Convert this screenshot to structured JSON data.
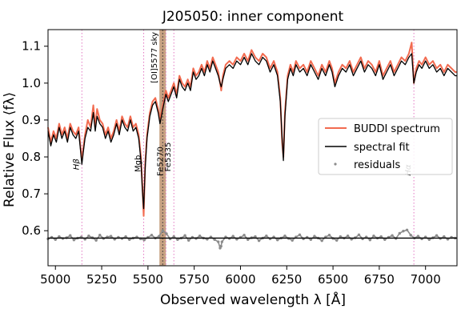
{
  "chart_data": {
    "type": "line",
    "title": "J205050: inner component",
    "xlabel": "Observed wavelength λ [Å]",
    "ylabel": "Relative Flux ⟨fλ⟩",
    "xlim": [
      4960,
      7170
    ],
    "ylim": [
      0.505,
      1.145
    ],
    "xticks": [
      5000,
      5250,
      5500,
      5750,
      6000,
      6250,
      6500,
      6750,
      7000
    ],
    "yticks": [
      0.6,
      0.7,
      0.8,
      0.9,
      1.0,
      1.1
    ],
    "xtick_labels": [
      "5000",
      "5250",
      "5500",
      "5750",
      "6000",
      "6250",
      "6500",
      "6750",
      "7000"
    ],
    "ytick_labels": [
      "0.6",
      "0.7",
      "0.8",
      "0.9",
      "1.0",
      "1.1"
    ],
    "grid": false,
    "legend_position": "center-right",
    "colors": {
      "spectrum": "#f26b50",
      "fit": "#000000",
      "residuals": "#8c8c8c",
      "line_markers": "#e377c2",
      "masked_band": "#b5835a"
    },
    "masked_region": {
      "label": "[OI]5577 sky",
      "x": [
        5562,
        5597
      ]
    },
    "line_markers": [
      {
        "label": "Hβ",
        "x": 5143,
        "label_y": 0.78
      },
      {
        "label": "Mgb",
        "x": 5477,
        "label_y": 0.782
      },
      {
        "label": "Fe5270",
        "x": 5597,
        "label_y": 0.788
      },
      {
        "label": "Fe5335",
        "x": 5640,
        "label_y": 0.8
      },
      {
        "label": "Hα",
        "x": 6937,
        "label_y": 0.764
      }
    ],
    "series": [
      {
        "name": "BUDDI spectrum",
        "x": [
          4960,
          4975,
          4990,
          5005,
          5020,
          5035,
          5050,
          5065,
          5080,
          5095,
          5110,
          5125,
          5135,
          5143,
          5150,
          5160,
          5175,
          5190,
          5205,
          5215,
          5225,
          5240,
          5255,
          5270,
          5285,
          5300,
          5315,
          5330,
          5345,
          5360,
          5375,
          5390,
          5405,
          5420,
          5435,
          5450,
          5462,
          5470,
          5477,
          5485,
          5495,
          5510,
          5525,
          5540,
          5555,
          5565,
          5580,
          5597,
          5610,
          5625,
          5640,
          5655,
          5670,
          5685,
          5700,
          5715,
          5730,
          5745,
          5760,
          5775,
          5790,
          5805,
          5820,
          5835,
          5850,
          5865,
          5880,
          5890,
          5896,
          5905,
          5920,
          5940,
          5960,
          5980,
          6000,
          6020,
          6040,
          6060,
          6080,
          6100,
          6120,
          6140,
          6160,
          6180,
          6200,
          6215,
          6225,
          6232,
          6240,
          6255,
          6270,
          6285,
          6300,
          6320,
          6340,
          6360,
          6380,
          6400,
          6420,
          6440,
          6460,
          6480,
          6495,
          6510,
          6530,
          6550,
          6570,
          6590,
          6610,
          6630,
          6650,
          6670,
          6690,
          6710,
          6730,
          6750,
          6770,
          6790,
          6810,
          6830,
          6850,
          6870,
          6890,
          6910,
          6925,
          6937,
          6950,
          6965,
          6980,
          7000,
          7020,
          7040,
          7060,
          7080,
          7100,
          7120,
          7140,
          7160,
          7170
        ],
        "values": [
          0.88,
          0.84,
          0.87,
          0.85,
          0.89,
          0.86,
          0.88,
          0.85,
          0.89,
          0.87,
          0.86,
          0.88,
          0.83,
          0.79,
          0.82,
          0.86,
          0.9,
          0.88,
          0.94,
          0.88,
          0.93,
          0.9,
          0.89,
          0.86,
          0.88,
          0.85,
          0.87,
          0.9,
          0.87,
          0.91,
          0.89,
          0.88,
          0.91,
          0.88,
          0.89,
          0.86,
          0.8,
          0.72,
          0.64,
          0.78,
          0.86,
          0.92,
          0.95,
          0.96,
          0.93,
          0.9,
          0.94,
          0.98,
          0.96,
          0.98,
          1.0,
          0.97,
          1.02,
          1.0,
          0.99,
          1.01,
          0.99,
          1.04,
          1.02,
          1.03,
          1.05,
          1.03,
          1.06,
          1.04,
          1.07,
          1.05,
          1.03,
          1.0,
          0.98,
          1.02,
          1.05,
          1.06,
          1.05,
          1.07,
          1.06,
          1.08,
          1.06,
          1.09,
          1.07,
          1.06,
          1.08,
          1.07,
          1.04,
          1.06,
          1.03,
          0.96,
          0.84,
          0.8,
          0.92,
          1.02,
          1.05,
          1.03,
          1.06,
          1.04,
          1.05,
          1.03,
          1.06,
          1.04,
          1.02,
          1.05,
          1.03,
          1.06,
          1.04,
          1.0,
          1.03,
          1.05,
          1.04,
          1.06,
          1.03,
          1.05,
          1.07,
          1.04,
          1.06,
          1.05,
          1.03,
          1.06,
          1.02,
          1.04,
          1.06,
          1.03,
          1.05,
          1.07,
          1.06,
          1.08,
          1.11,
          1.0,
          1.04,
          1.06,
          1.05,
          1.07,
          1.05,
          1.06,
          1.04,
          1.05,
          1.03,
          1.05,
          1.04,
          1.03,
          1.03
        ]
      },
      {
        "name": "spectral fit",
        "x": [
          4960,
          4975,
          4990,
          5005,
          5020,
          5035,
          5050,
          5065,
          5080,
          5095,
          5110,
          5125,
          5135,
          5143,
          5150,
          5160,
          5175,
          5190,
          5205,
          5215,
          5225,
          5240,
          5255,
          5270,
          5285,
          5300,
          5315,
          5330,
          5345,
          5360,
          5375,
          5390,
          5405,
          5420,
          5435,
          5450,
          5462,
          5470,
          5477,
          5485,
          5495,
          5510,
          5525,
          5540,
          5555,
          5565,
          5580,
          5597,
          5610,
          5625,
          5640,
          5655,
          5670,
          5685,
          5700,
          5715,
          5730,
          5745,
          5760,
          5775,
          5790,
          5805,
          5820,
          5835,
          5850,
          5865,
          5880,
          5890,
          5896,
          5905,
          5920,
          5940,
          5960,
          5980,
          6000,
          6020,
          6040,
          6060,
          6080,
          6100,
          6120,
          6140,
          6160,
          6180,
          6200,
          6215,
          6225,
          6232,
          6240,
          6255,
          6270,
          6285,
          6300,
          6320,
          6340,
          6360,
          6380,
          6400,
          6420,
          6440,
          6460,
          6480,
          6495,
          6510,
          6530,
          6550,
          6570,
          6590,
          6610,
          6630,
          6650,
          6670,
          6690,
          6710,
          6730,
          6750,
          6770,
          6790,
          6810,
          6830,
          6850,
          6870,
          6890,
          6910,
          6925,
          6937,
          6950,
          6965,
          6980,
          7000,
          7020,
          7040,
          7060,
          7080,
          7100,
          7120,
          7140,
          7160,
          7170
        ],
        "values": [
          0.87,
          0.83,
          0.86,
          0.84,
          0.88,
          0.85,
          0.87,
          0.84,
          0.88,
          0.86,
          0.85,
          0.87,
          0.82,
          0.78,
          0.81,
          0.85,
          0.88,
          0.87,
          0.92,
          0.87,
          0.91,
          0.89,
          0.88,
          0.85,
          0.87,
          0.84,
          0.86,
          0.89,
          0.86,
          0.9,
          0.88,
          0.87,
          0.9,
          0.87,
          0.88,
          0.85,
          0.79,
          0.71,
          0.66,
          0.77,
          0.85,
          0.91,
          0.94,
          0.95,
          0.92,
          0.89,
          0.93,
          0.97,
          0.95,
          0.97,
          0.99,
          0.96,
          1.01,
          0.99,
          0.98,
          1.0,
          0.98,
          1.03,
          1.01,
          1.02,
          1.04,
          1.02,
          1.05,
          1.03,
          1.06,
          1.04,
          1.02,
          1.0,
          0.99,
          1.01,
          1.04,
          1.05,
          1.04,
          1.06,
          1.05,
          1.07,
          1.05,
          1.08,
          1.06,
          1.05,
          1.07,
          1.06,
          1.03,
          1.05,
          1.02,
          0.95,
          0.85,
          0.79,
          0.91,
          1.01,
          1.04,
          1.02,
          1.05,
          1.03,
          1.04,
          1.02,
          1.05,
          1.03,
          1.01,
          1.04,
          1.02,
          1.05,
          1.03,
          0.99,
          1.02,
          1.04,
          1.03,
          1.05,
          1.02,
          1.04,
          1.06,
          1.03,
          1.05,
          1.04,
          1.02,
          1.05,
          1.01,
          1.03,
          1.05,
          1.02,
          1.04,
          1.06,
          1.05,
          1.07,
          1.08,
          1.0,
          1.03,
          1.05,
          1.04,
          1.06,
          1.04,
          1.05,
          1.03,
          1.04,
          1.02,
          1.04,
          1.03,
          1.02,
          1.02
        ]
      },
      {
        "name": "residuals",
        "x": [
          4960,
          4980,
          5000,
          5020,
          5040,
          5060,
          5080,
          5100,
          5120,
          5140,
          5160,
          5180,
          5200,
          5220,
          5240,
          5260,
          5280,
          5300,
          5320,
          5340,
          5360,
          5380,
          5400,
          5420,
          5440,
          5460,
          5480,
          5500,
          5520,
          5540,
          5560,
          5580,
          5600,
          5620,
          5640,
          5660,
          5680,
          5700,
          5720,
          5740,
          5760,
          5780,
          5800,
          5820,
          5840,
          5860,
          5880,
          5890,
          5895,
          5900,
          5920,
          5940,
          5960,
          5980,
          6000,
          6020,
          6040,
          6060,
          6080,
          6100,
          6120,
          6140,
          6160,
          6180,
          6200,
          6220,
          6240,
          6260,
          6280,
          6300,
          6320,
          6340,
          6360,
          6380,
          6400,
          6420,
          6440,
          6460,
          6480,
          6500,
          6520,
          6540,
          6560,
          6580,
          6600,
          6620,
          6640,
          6660,
          6680,
          6700,
          6720,
          6740,
          6760,
          6780,
          6800,
          6820,
          6840,
          6860,
          6880,
          6900,
          6920,
          6940,
          6960,
          6980,
          7000,
          7020,
          7040,
          7060,
          7080,
          7100,
          7120,
          7140,
          7160
        ],
        "values": [
          0.578,
          0.582,
          0.576,
          0.584,
          0.579,
          0.581,
          0.587,
          0.575,
          0.58,
          0.583,
          0.577,
          0.586,
          0.581,
          0.574,
          0.588,
          0.579,
          0.583,
          0.585,
          0.577,
          0.582,
          0.579,
          0.584,
          0.576,
          0.58,
          0.583,
          0.578,
          0.575,
          0.582,
          0.588,
          0.58,
          0.585,
          0.6,
          0.592,
          0.578,
          0.584,
          0.576,
          0.58,
          0.587,
          0.574,
          0.582,
          0.579,
          0.586,
          0.58,
          0.577,
          0.583,
          0.576,
          0.57,
          0.553,
          0.558,
          0.57,
          0.583,
          0.579,
          0.585,
          0.577,
          0.582,
          0.588,
          0.576,
          0.581,
          0.584,
          0.573,
          0.58,
          0.586,
          0.578,
          0.583,
          0.575,
          0.58,
          0.586,
          0.579,
          0.574,
          0.583,
          0.589,
          0.578,
          0.582,
          0.576,
          0.585,
          0.58,
          0.573,
          0.583,
          0.588,
          0.579,
          0.574,
          0.584,
          0.58,
          0.586,
          0.577,
          0.581,
          0.589,
          0.578,
          0.583,
          0.575,
          0.586,
          0.58,
          0.584,
          0.576,
          0.582,
          0.587,
          0.579,
          0.593,
          0.599,
          0.602,
          0.588,
          0.58,
          0.585,
          0.578,
          0.583,
          0.576,
          0.581,
          0.587,
          0.579,
          0.584,
          0.577,
          0.582,
          0.58
        ]
      }
    ]
  }
}
